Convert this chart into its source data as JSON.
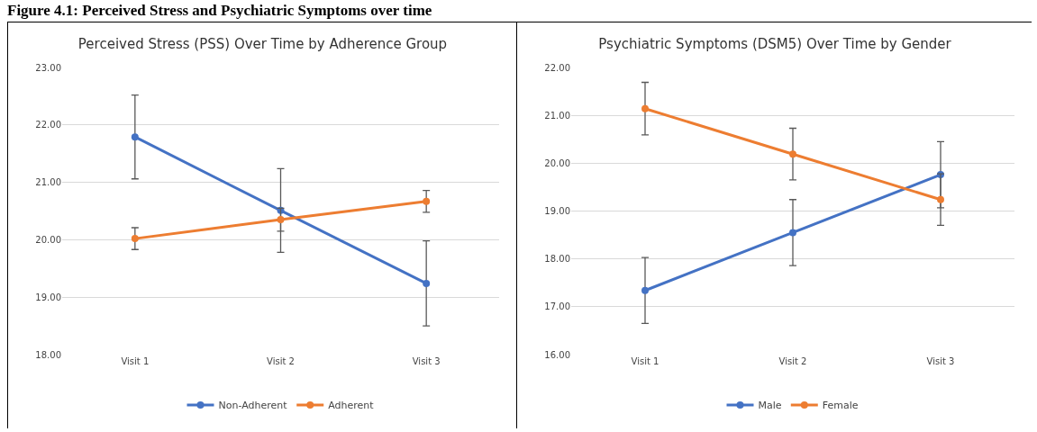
{
  "chart_data": [
    {
      "type": "line",
      "title": "Perceived Stress (PSS) Over Time by Adherence Group",
      "annotations": [
        "Figure 4.1: Perceived Stress and Psychiatric Symptoms over time"
      ],
      "categories": [
        "Visit 1",
        "Visit 2",
        "Visit 3"
      ],
      "series": [
        {
          "name": "Non-Adherent",
          "color": "#4472c4",
          "values": [
            21.79,
            20.51,
            19.24
          ],
          "errors": [
            0.73,
            0.73,
            0.74
          ]
        },
        {
          "name": "Adherent",
          "color": "#ed7d31",
          "values": [
            20.02,
            20.35,
            20.67
          ],
          "errors": [
            0.19,
            0.2,
            0.19
          ]
        }
      ],
      "ylim": [
        18,
        23
      ],
      "yticks": [
        {
          "value": 18,
          "label": "18.00"
        },
        {
          "value": 19,
          "label": "19.00"
        },
        {
          "value": 20,
          "label": "20.00"
        },
        {
          "value": 21,
          "label": "21.00"
        },
        {
          "value": 22,
          "label": "22.00"
        },
        {
          "value": 23,
          "label": "23.00"
        }
      ],
      "grid": "y",
      "legend": "bottom",
      "marker": "circle",
      "line_style": "solid"
    },
    {
      "type": "line",
      "title": "Psychiatric Symptoms (DSM5) Over Time by Gender",
      "categories": [
        "Visit 1",
        "Visit 2",
        "Visit 3"
      ],
      "series": [
        {
          "name": "Male",
          "color": "#4472c4",
          "values": [
            17.34,
            18.55,
            19.76
          ],
          "errors": [
            0.69,
            0.69,
            0.69
          ]
        },
        {
          "name": "Female",
          "color": "#ed7d31",
          "values": [
            21.14,
            20.19,
            19.24
          ],
          "errors": [
            0.55,
            0.54,
            0.54
          ]
        }
      ],
      "ylim": [
        16,
        22
      ],
      "yticks": [
        {
          "value": 16,
          "label": "16.00"
        },
        {
          "value": 17,
          "label": "17.00"
        },
        {
          "value": 18,
          "label": "18.00"
        },
        {
          "value": 19,
          "label": "19.00"
        },
        {
          "value": 20,
          "label": "20.00"
        },
        {
          "value": 21,
          "label": "21.00"
        },
        {
          "value": 22,
          "label": "22.00"
        }
      ],
      "grid": "y",
      "legend": "bottom",
      "marker": "circle",
      "line_style": "solid"
    }
  ]
}
